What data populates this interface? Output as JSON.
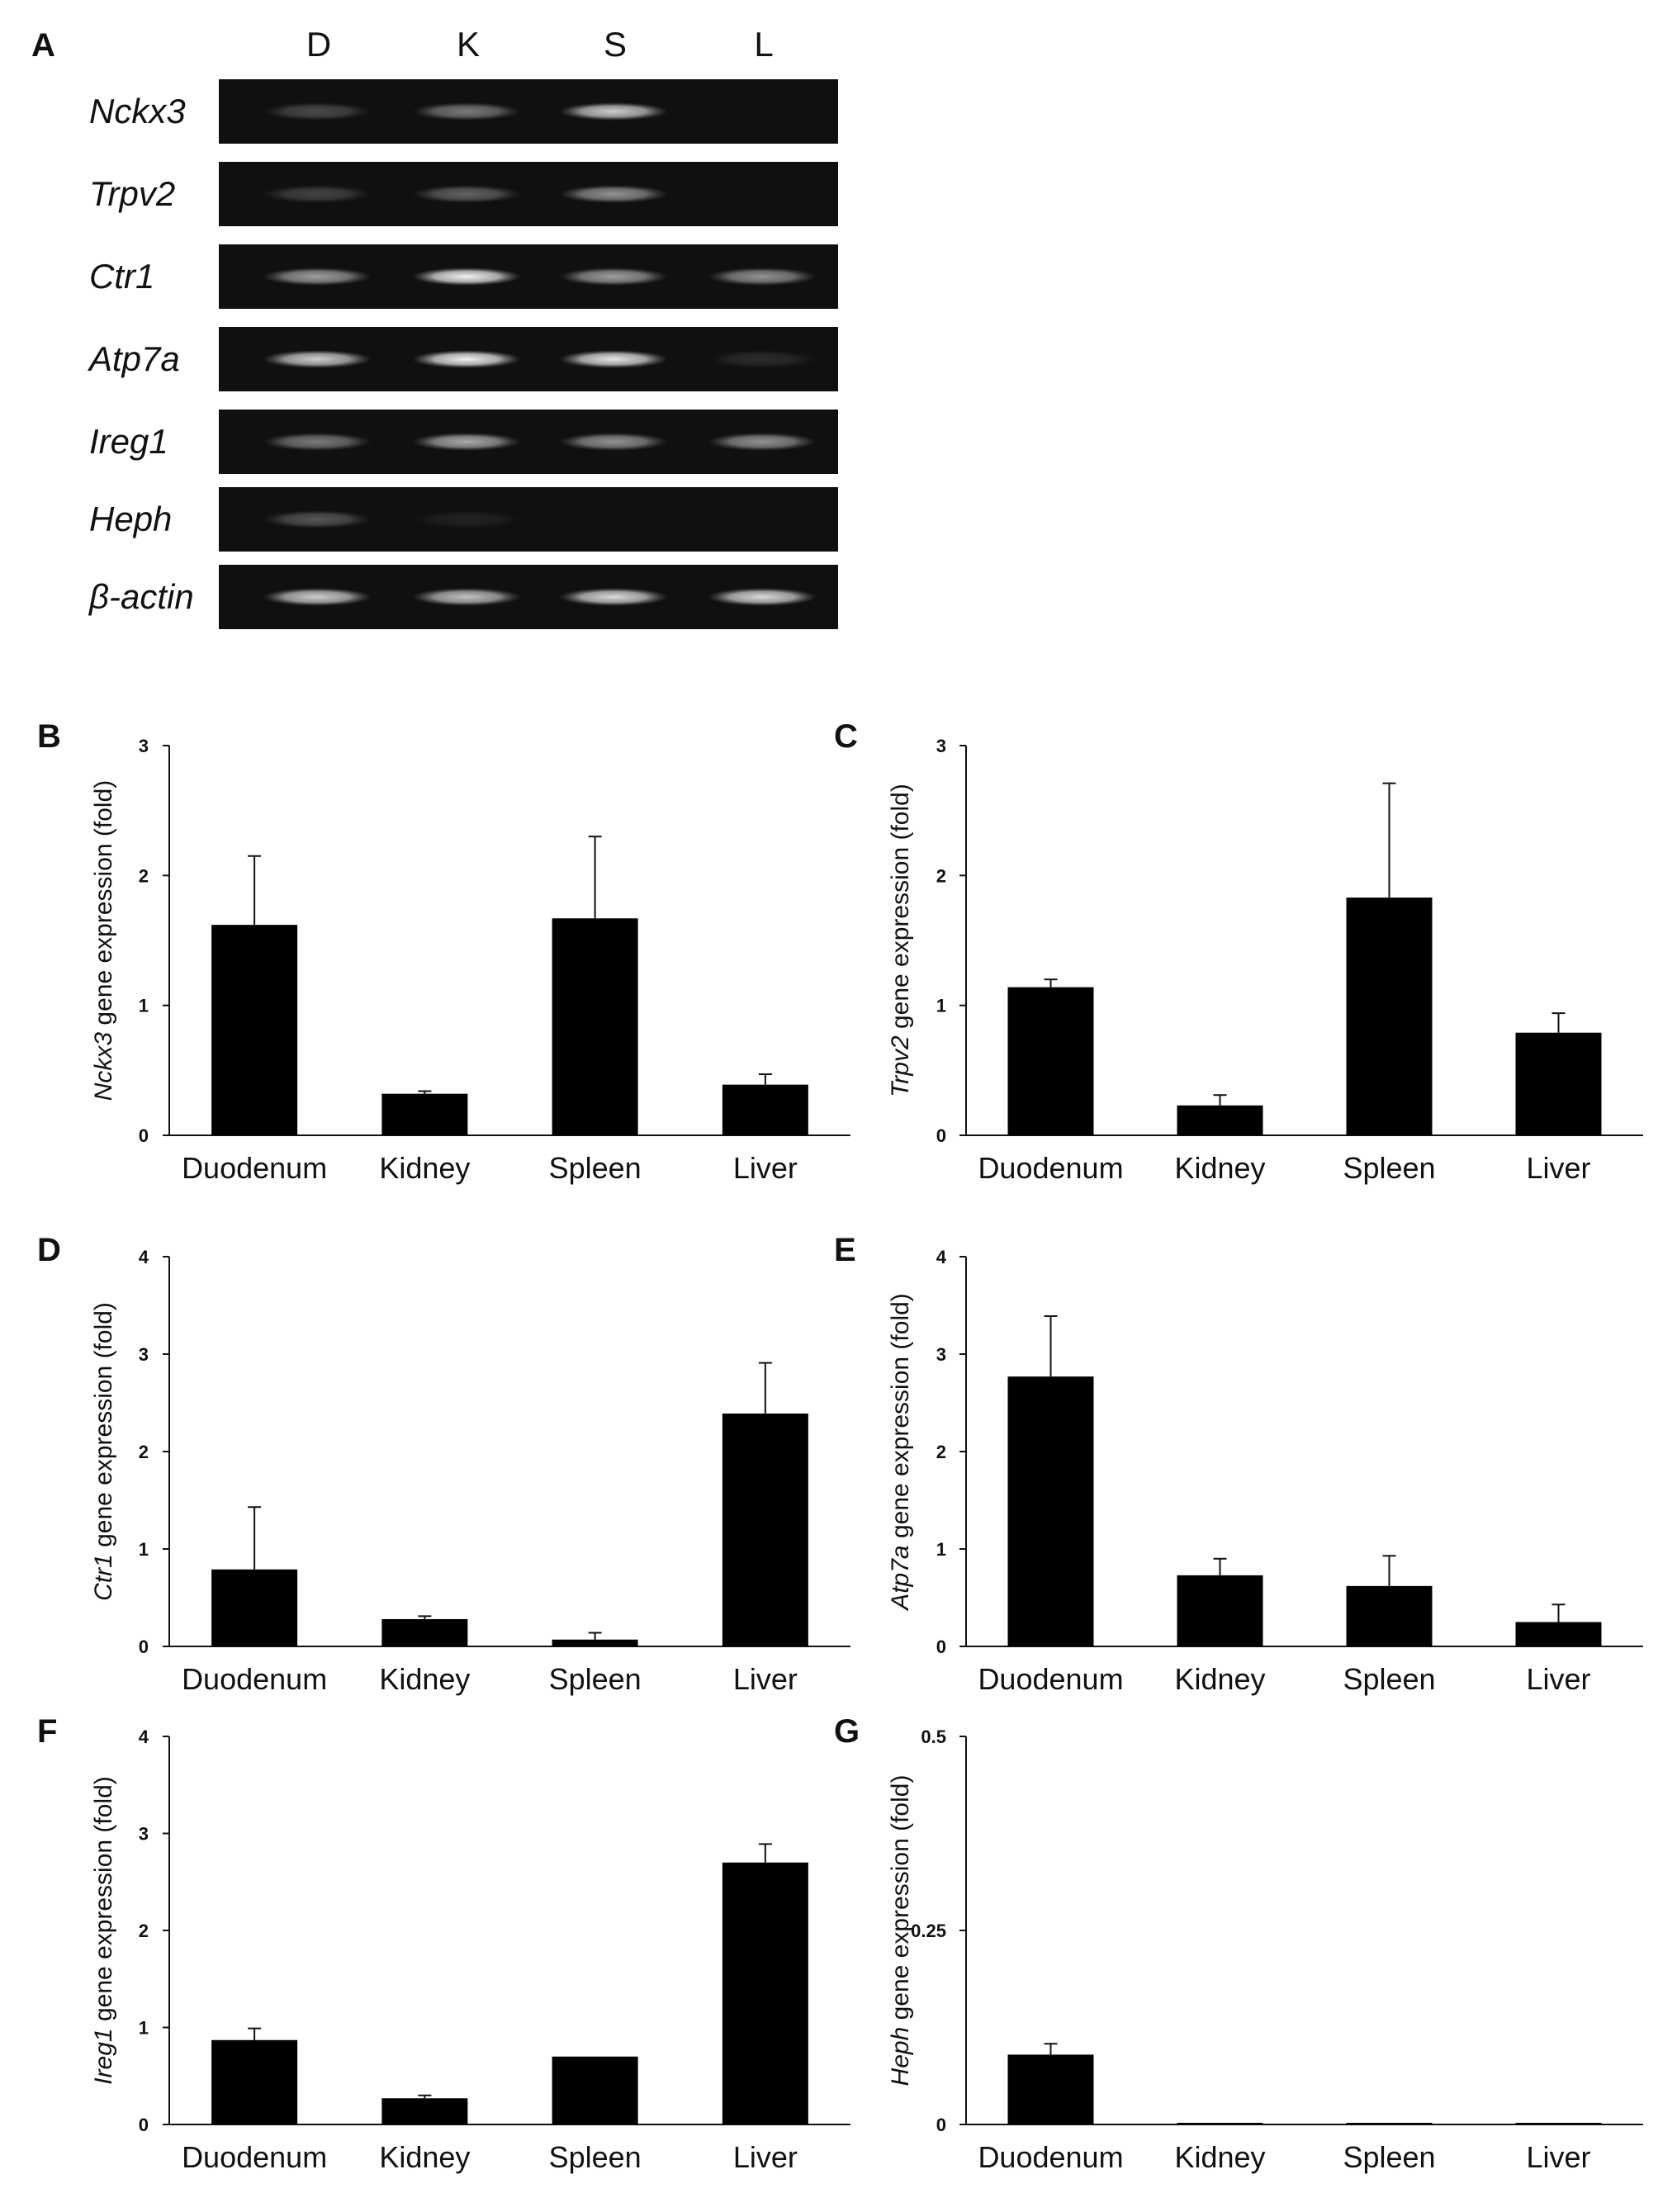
{
  "gel": {
    "panel_letter": "A",
    "lanes": [
      "D",
      "K",
      "S",
      "L"
    ],
    "rows": [
      {
        "gene": "Nckx3",
        "bands": [
          0.25,
          0.45,
          0.8,
          0.0
        ]
      },
      {
        "gene": "Trpv2",
        "bands": [
          0.22,
          0.35,
          0.55,
          0.0
        ]
      },
      {
        "gene": "Ctr1",
        "bands": [
          0.6,
          0.95,
          0.6,
          0.55
        ]
      },
      {
        "gene": "Atp7a",
        "bands": [
          0.8,
          0.95,
          0.9,
          0.12
        ]
      },
      {
        "gene": "Ireg1",
        "bands": [
          0.45,
          0.65,
          0.55,
          0.55
        ]
      },
      {
        "gene": "Heph",
        "bands": [
          0.3,
          0.08,
          0.0,
          0.0
        ]
      },
      {
        "gene": "β-actin",
        "bands": [
          0.8,
          0.75,
          0.85,
          0.85
        ]
      }
    ]
  },
  "chart_data": [
    {
      "panel": "B",
      "type": "bar",
      "gene": "Nckx3",
      "ylabel_suffix": " gene expression  (fold)",
      "categories": [
        "Duodenum",
        "Kidney",
        "Spleen",
        "Liver"
      ],
      "values": [
        1.62,
        0.32,
        1.67,
        0.39
      ],
      "errors": [
        0.53,
        0.02,
        0.63,
        0.08
      ],
      "ylim": [
        0,
        3
      ],
      "yticks": [
        0,
        1,
        2,
        3
      ],
      "ytick_labels": [
        "0",
        "1",
        "2",
        "3"
      ]
    },
    {
      "panel": "C",
      "type": "bar",
      "gene": "Trpv2",
      "ylabel_suffix": " gene expression  (fold)",
      "categories": [
        "Duodenum",
        "Kidney",
        "Spleen",
        "Liver"
      ],
      "values": [
        1.14,
        0.23,
        1.83,
        0.79
      ],
      "errors": [
        0.06,
        0.08,
        0.88,
        0.15
      ],
      "ylim": [
        0,
        3
      ],
      "yticks": [
        0,
        1,
        2,
        3
      ],
      "ytick_labels": [
        "0",
        "1",
        "2",
        "3"
      ]
    },
    {
      "panel": "D",
      "type": "bar",
      "gene": "Ctr1",
      "ylabel_suffix": " gene expression  (fold)",
      "categories": [
        "Duodenum",
        "Kidney",
        "Spleen",
        "Liver"
      ],
      "values": [
        0.79,
        0.28,
        0.07,
        2.39
      ],
      "errors": [
        0.64,
        0.03,
        0.07,
        0.52
      ],
      "ylim": [
        0,
        4
      ],
      "yticks": [
        0,
        1,
        2,
        3,
        4
      ],
      "ytick_labels": [
        "0",
        "1",
        "2",
        "3",
        "4"
      ]
    },
    {
      "panel": "E",
      "type": "bar",
      "gene": "Atp7a",
      "ylabel_suffix": " gene expression  (fold)",
      "categories": [
        "Duodenum",
        "Kidney",
        "Spleen",
        "Liver"
      ],
      "values": [
        2.77,
        0.73,
        0.62,
        0.25
      ],
      "errors": [
        0.62,
        0.17,
        0.31,
        0.18
      ],
      "ylim": [
        0,
        4
      ],
      "yticks": [
        0,
        1,
        2,
        3,
        4
      ],
      "ytick_labels": [
        "0",
        "1",
        "2",
        "3",
        "4"
      ]
    },
    {
      "panel": "F",
      "type": "bar",
      "gene": "Ireg1",
      "ylabel_suffix": " gene  expression  (fold)",
      "categories": [
        "Duodenum",
        "Kidney",
        "Spleen",
        "Liver"
      ],
      "values": [
        0.87,
        0.27,
        0.7,
        2.7
      ],
      "errors": [
        0.12,
        0.03,
        0.0,
        0.19
      ],
      "ylim": [
        0,
        4
      ],
      "yticks": [
        0,
        1,
        2,
        3,
        4
      ],
      "ytick_labels": [
        "0",
        "1",
        "2",
        "3",
        "4"
      ]
    },
    {
      "panel": "G",
      "type": "bar",
      "gene": "Heph",
      "ylabel_suffix": " gene expression  (fold)",
      "categories": [
        "Duodenum",
        "Kidney",
        "Spleen",
        "Liver"
      ],
      "values": [
        0.09,
        0.001,
        0.001,
        0.001
      ],
      "errors": [
        0.014,
        0.0,
        0.0,
        0.0
      ],
      "ylim": [
        0,
        0.5
      ],
      "yticks": [
        0,
        0.25,
        0.5
      ],
      "ytick_labels": [
        "0",
        "0.25",
        "0.5"
      ]
    }
  ]
}
